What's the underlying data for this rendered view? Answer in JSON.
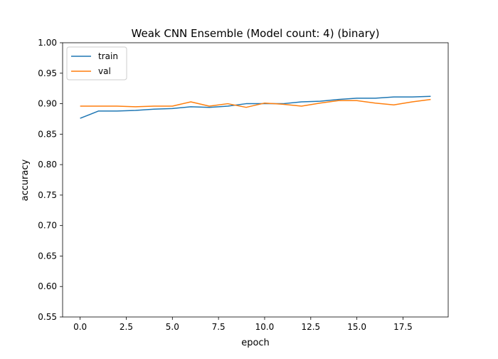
{
  "chart_data": {
    "type": "line",
    "title": "Weak CNN Ensemble (Model count: 4) (binary)",
    "xlabel": "epoch",
    "ylabel": "accuracy",
    "xlim": [
      -0.95,
      19.95
    ],
    "ylim": [
      0.55,
      1.0
    ],
    "x_ticks": [
      0.0,
      2.5,
      5.0,
      7.5,
      10.0,
      12.5,
      15.0,
      17.5
    ],
    "x_tick_labels": [
      "0.0",
      "2.5",
      "5.0",
      "7.5",
      "10.0",
      "12.5",
      "15.0",
      "17.5"
    ],
    "y_ticks": [
      0.55,
      0.6,
      0.65,
      0.7,
      0.75,
      0.8,
      0.85,
      0.9,
      0.95,
      1.0
    ],
    "y_tick_labels": [
      "0.55",
      "0.60",
      "0.65",
      "0.70",
      "0.75",
      "0.80",
      "0.85",
      "0.90",
      "0.95",
      "1.00"
    ],
    "grid": false,
    "legend_position": "top-left",
    "x": [
      0,
      1,
      2,
      3,
      4,
      5,
      6,
      7,
      8,
      9,
      10,
      11,
      12,
      13,
      14,
      15,
      16,
      17,
      18,
      19
    ],
    "series": [
      {
        "name": "train",
        "color": "#1f77b4",
        "values": [
          0.876,
          0.888,
          0.888,
          0.889,
          0.891,
          0.892,
          0.895,
          0.894,
          0.896,
          0.9,
          0.9,
          0.9,
          0.903,
          0.904,
          0.907,
          0.909,
          0.909,
          0.911,
          0.911,
          0.912
        ]
      },
      {
        "name": "val",
        "color": "#ff7f0e",
        "values": [
          0.896,
          0.896,
          0.896,
          0.895,
          0.896,
          0.896,
          0.903,
          0.896,
          0.9,
          0.894,
          0.901,
          0.899,
          0.896,
          0.901,
          0.905,
          0.905,
          0.901,
          0.898,
          0.903,
          0.907
        ]
      }
    ]
  }
}
